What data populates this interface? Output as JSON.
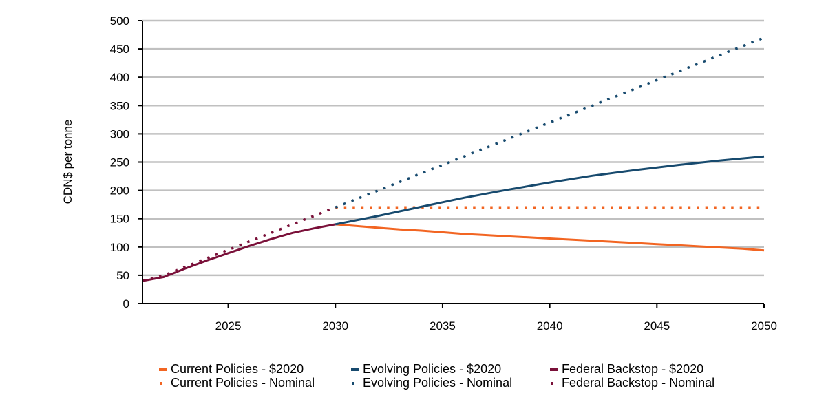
{
  "chart_data": {
    "type": "line",
    "title": "",
    "xlabel": "",
    "ylabel": "CDN$ per tonne",
    "xlim": [
      2021,
      2050
    ],
    "ylim": [
      0,
      500
    ],
    "xticks": [
      2025,
      2030,
      2035,
      2040,
      2045,
      2050
    ],
    "yticks": [
      0,
      50,
      100,
      150,
      200,
      250,
      300,
      350,
      400,
      450,
      500
    ],
    "grid": "horizontal",
    "legend_position": "bottom",
    "series": [
      {
        "name": "Current Policies - $2020",
        "color": "#f26522",
        "style": "solid",
        "x": [
          2030,
          2031,
          2032,
          2033,
          2034,
          2035,
          2036,
          2037,
          2038,
          2039,
          2040,
          2041,
          2042,
          2043,
          2044,
          2045,
          2046,
          2047,
          2048,
          2049,
          2050
        ],
        "values": [
          140,
          137,
          134,
          131,
          129,
          126,
          123,
          121,
          119,
          117,
          115,
          113,
          111,
          109,
          107,
          105,
          103,
          101,
          99,
          97,
          94
        ]
      },
      {
        "name": "Current Policies - Nominal",
        "color": "#f26522",
        "style": "dotted",
        "x": [
          2030,
          2050
        ],
        "values": [
          170,
          170
        ]
      },
      {
        "name": "Evolving Policies - $2020",
        "color": "#174a6e",
        "style": "solid",
        "x": [
          2030,
          2032,
          2034,
          2036,
          2038,
          2040,
          2042,
          2044,
          2046,
          2048,
          2050
        ],
        "values": [
          140,
          155,
          171,
          187,
          201,
          214,
          226,
          236,
          245,
          253,
          260
        ]
      },
      {
        "name": "Evolving Policies - Nominal",
        "color": "#174a6e",
        "style": "dotted",
        "x": [
          2030,
          2035,
          2040,
          2045,
          2050
        ],
        "values": [
          170,
          245,
          320,
          395,
          470
        ]
      },
      {
        "name": "Federal Backstop - $2020",
        "color": "#7a1039",
        "style": "solid",
        "x": [
          2021,
          2022,
          2023,
          2024,
          2025,
          2026,
          2027,
          2028,
          2029,
          2030
        ],
        "values": [
          40,
          47,
          62,
          76,
          89,
          102,
          114,
          125,
          133,
          140
        ]
      },
      {
        "name": "Federal Backstop - Nominal",
        "color": "#7a1039",
        "style": "dotted",
        "x": [
          2021,
          2022,
          2023,
          2024,
          2025,
          2026,
          2027,
          2028,
          2029,
          2030
        ],
        "values": [
          40,
          50,
          65,
          80,
          95,
          110,
          125,
          140,
          155,
          170
        ]
      }
    ]
  }
}
